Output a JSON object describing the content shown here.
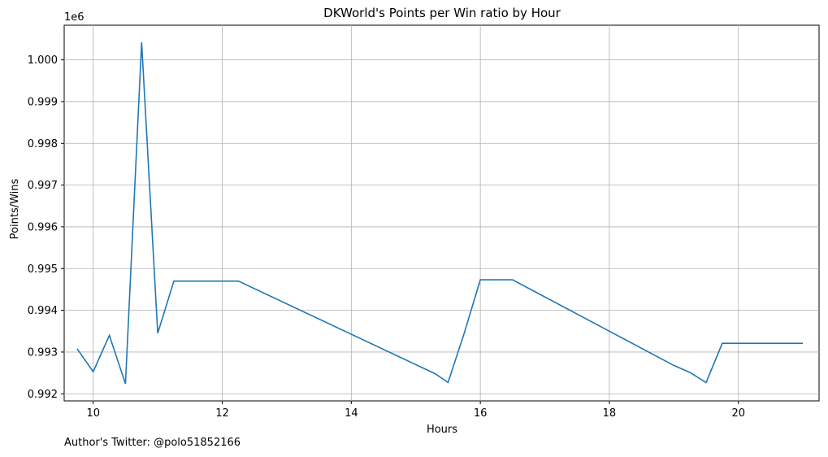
{
  "chart_data": {
    "type": "line",
    "title": "DKWorld's Points per Win ratio by Hour",
    "xlabel": "Hours",
    "ylabel": "Points/Wins",
    "offset_text": "1e6",
    "xlim": [
      9.55,
      21.25
    ],
    "ylim": [
      991.83,
      1000.83
    ],
    "x_ticks": [
      10,
      12,
      14,
      16,
      18,
      20
    ],
    "y_ticks": [
      992,
      993,
      994,
      995,
      996,
      997,
      998,
      999,
      1000
    ],
    "x_tick_labels": [
      "10",
      "12",
      "14",
      "16",
      "18",
      "20"
    ],
    "y_tick_labels": [
      "0.992",
      "0.993",
      "0.994",
      "0.995",
      "0.996",
      "0.997",
      "0.998",
      "0.999",
      "1.000"
    ],
    "grid": true,
    "line_color": "#1f77b4",
    "series": [
      {
        "x": [
          9.75,
          10.0,
          10.25,
          10.5,
          10.75,
          11.0,
          11.25,
          12.25,
          15.3,
          15.5,
          15.75,
          16.0,
          16.5,
          19.0,
          19.25,
          19.5,
          19.75,
          21.0
        ],
        "y": [
          993.08,
          992.53,
          993.4,
          992.24,
          1000.42,
          993.45,
          994.7,
          994.7,
          992.48,
          992.27,
          993.45,
          994.73,
          994.73,
          992.68,
          992.51,
          992.27,
          993.21,
          993.21
        ]
      }
    ]
  },
  "footer": {
    "text": "Author's Twitter: @polo51852166"
  }
}
